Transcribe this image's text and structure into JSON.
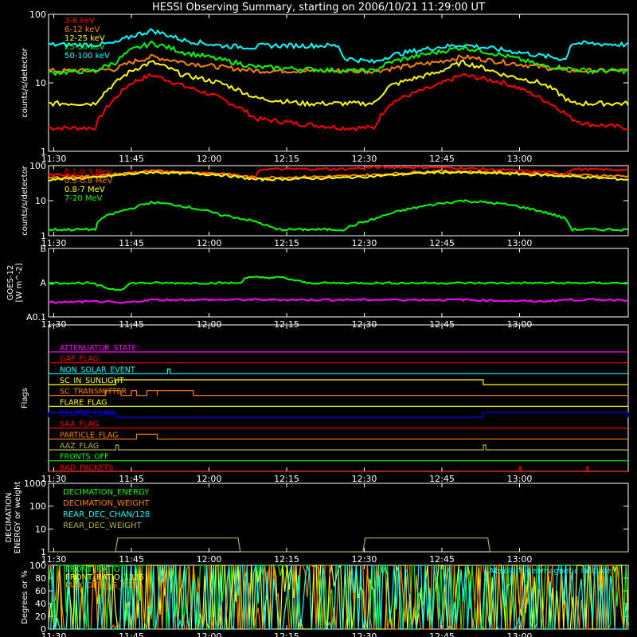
{
  "title": "HESSI Observing Summary, starting on 2006/10/21 11:29:00 UT",
  "time_ticks": [
    "11:30",
    "11:45",
    "12:00",
    "12:15",
    "12:30",
    "12:45",
    "13:00"
  ],
  "colors": {
    "red": "#ff0000",
    "orange": "#ff8000",
    "yellow": "#ffff00",
    "green": "#00ff00",
    "cyan": "#00ffff",
    "magenta": "#ff00ff",
    "blue": "#0000ff",
    "olive": "#b0b040"
  },
  "chart_data": [
    {
      "type": "line",
      "ylabel": "counts/s/detector",
      "yscale": "log",
      "ylim": [
        1,
        100
      ],
      "yticks": [
        "1",
        "10",
        "100"
      ],
      "series": [
        {
          "name": "3-6 keV",
          "color": "#ff0000",
          "x": [
            0,
            9,
            13,
            16,
            20,
            26,
            33,
            40,
            49,
            57,
            63,
            66,
            75,
            80,
            88,
            95,
            101,
            104,
            112
          ],
          "y": [
            2.2,
            2.2,
            6,
            10,
            13,
            9,
            6,
            3,
            2.5,
            2.2,
            2.2,
            5,
            9,
            13,
            10,
            6,
            3,
            2.5,
            2.2
          ]
        },
        {
          "name": "6-12 keV",
          "color": "#ff8000",
          "x": [
            0,
            9,
            13,
            16,
            20,
            26,
            33,
            40,
            49,
            57,
            63,
            66,
            75,
            80,
            88,
            95,
            101,
            104,
            112
          ],
          "y": [
            15,
            15,
            16,
            20,
            24,
            20,
            17,
            15,
            15,
            15,
            15,
            16,
            20,
            24,
            20,
            17,
            15,
            15,
            15
          ]
        },
        {
          "name": "12-25 keV",
          "color": "#ffff00",
          "x": [
            0,
            9,
            13,
            16,
            20,
            26,
            33,
            40,
            49,
            57,
            63,
            66,
            75,
            80,
            88,
            95,
            101,
            104,
            112
          ],
          "y": [
            5,
            5,
            10,
            15,
            20,
            13,
            10,
            6,
            5,
            5,
            5,
            9,
            14,
            20,
            13,
            10,
            5,
            5,
            5
          ]
        },
        {
          "name": "25-50 keV",
          "color": "#00ff00",
          "x": [
            0,
            9,
            13,
            16,
            20,
            26,
            33,
            40,
            49,
            57,
            63,
            66,
            75,
            80,
            88,
            95,
            101,
            104,
            112
          ],
          "y": [
            14,
            15,
            20,
            30,
            38,
            28,
            22,
            17,
            16,
            15,
            15,
            20,
            28,
            33,
            25,
            18,
            16,
            15,
            15
          ]
        },
        {
          "name": "50-100 keV",
          "color": "#00ffff",
          "x": [
            0,
            9,
            13,
            16,
            20,
            26,
            33,
            40,
            41,
            56,
            57,
            63,
            66,
            75,
            80,
            88,
            95,
            100,
            101,
            112
          ],
          "y": [
            36,
            36,
            38,
            48,
            58,
            42,
            35,
            33,
            35,
            35,
            23,
            20,
            25,
            33,
            36,
            30,
            25,
            22,
            38,
            36
          ]
        }
      ]
    },
    {
      "type": "line",
      "ylabel": "counts/s/detector",
      "yscale": "log",
      "ylim": [
        1,
        100
      ],
      "yticks": [
        "1",
        "10",
        "100"
      ],
      "series": [
        {
          "name": "0.1-0.3 MeV",
          "color": "#ff0000",
          "x": [
            0,
            9,
            20,
            33,
            40,
            41,
            57,
            63,
            75,
            88,
            100,
            101,
            112
          ],
          "y": [
            55,
            50,
            70,
            60,
            45,
            80,
            80,
            90,
            90,
            75,
            60,
            80,
            75
          ]
        },
        {
          "name": "0.3-0.8 MeV",
          "color": "#ff8000",
          "x": [
            0,
            9,
            20,
            33,
            40,
            57,
            63,
            75,
            88,
            100,
            112
          ],
          "y": [
            45,
            50,
            70,
            60,
            45,
            50,
            55,
            70,
            65,
            55,
            50
          ]
        },
        {
          "name": "0.8-7 MeV",
          "color": "#ffff00",
          "x": [
            0,
            9,
            20,
            33,
            40,
            57,
            63,
            75,
            88,
            100,
            112
          ],
          "y": [
            40,
            45,
            65,
            55,
            40,
            45,
            50,
            65,
            60,
            50,
            40
          ]
        },
        {
          "name": "7-20 MeV",
          "color": "#00ff00",
          "x": [
            0,
            9,
            10,
            16,
            20,
            26,
            33,
            40,
            44,
            57,
            63,
            75,
            80,
            88,
            95,
            100,
            101,
            112
          ],
          "y": [
            1.5,
            1.5,
            3,
            6,
            9,
            7,
            4,
            2.5,
            1.5,
            1.5,
            3,
            8,
            10,
            8,
            5,
            3,
            1.5,
            1.5
          ]
        }
      ]
    },
    {
      "type": "line",
      "ylabel": "GOES-12 [W m^-2]",
      "ylim": [
        0,
        2
      ],
      "yticks": [
        "A0.1",
        "A",
        "B"
      ],
      "series": [
        {
          "name": "",
          "color": "#00ff00",
          "x": [
            0,
            8,
            10,
            12,
            13,
            14,
            16,
            20,
            37,
            38,
            45,
            50,
            60,
            80,
            112
          ],
          "y": [
            0.99,
            0.99,
            0.9,
            0.82,
            0.8,
            0.8,
            0.99,
            0.99,
            0.99,
            1.15,
            1.15,
            0.99,
            0.99,
            0.99,
            0.99
          ]
        },
        {
          "name": "",
          "color": "#ff00ff",
          "x": [
            0,
            10,
            14,
            20,
            30,
            40,
            50,
            60,
            80,
            95,
            100,
            112
          ],
          "y": [
            0.42,
            0.45,
            0.4,
            0.5,
            0.5,
            0.5,
            0.5,
            0.5,
            0.5,
            0.45,
            0.5,
            0.5
          ]
        }
      ]
    },
    {
      "type": "table",
      "ylabel": "Flags",
      "flags": [
        {
          "name": "ATTENUATOR_STATE",
          "color": "#ff00ff",
          "segments": []
        },
        {
          "name": "GAP_FLAG",
          "color": "#ff0000",
          "segments": []
        },
        {
          "name": "NON_SOLAR_EVENT",
          "color": "#00ffff",
          "segments": [
            [
              23,
              23.5
            ]
          ]
        },
        {
          "name": "SC_IN_SUNLIGHT",
          "color": "#ffff00",
          "segments": [
            [
              13,
              84
            ]
          ]
        },
        {
          "name": "SC_TRANSMITTER",
          "color": "#ff8000",
          "segments": [
            [
              11,
              14
            ],
            [
              16,
              17
            ],
            [
              19,
              21
            ],
            [
              21,
              28
            ]
          ]
        },
        {
          "name": "FLARE_FLAG",
          "color": "#ffff00",
          "segments": []
        },
        {
          "name": "ECLIPSE_FLAG",
          "color": "#0000ff",
          "segments": [
            [
              0,
              13
            ],
            [
              84,
              112
            ]
          ]
        },
        {
          "name": "SAA_FLAG",
          "color": "#ff0000",
          "segments": []
        },
        {
          "name": "PARTICLE_FLAG",
          "color": "#ff8000",
          "segments": [
            [
              17,
              21
            ]
          ]
        },
        {
          "name": "AAZ_FLAG",
          "color": "#b0b040",
          "segments": [
            [
              13,
              13.5
            ],
            [
              84,
              84.5
            ]
          ]
        },
        {
          "name": "FRONTS_OFF",
          "color": "#00ff00",
          "segments": []
        },
        {
          "name": "BAD_PACKETS",
          "color": "#ff0000",
          "segments": [
            [
              91,
              91.3
            ],
            [
              104,
              104.3
            ]
          ]
        }
      ]
    },
    {
      "type": "line",
      "ylabel": "DECIMATION ENERGY or weight",
      "yscale": "log",
      "ylim": [
        1,
        1000
      ],
      "yticks": [
        "1",
        "10",
        "100",
        "1000"
      ],
      "series": [
        {
          "name": "DECIMATION_ENERGY",
          "color": "#00ff00",
          "x": [],
          "y": []
        },
        {
          "name": "DECIMATION_WEIGHT",
          "color": "#ff8000",
          "x": [],
          "y": []
        },
        {
          "name": "REAR_DEC_CHAN/128",
          "color": "#00ffff",
          "x": [],
          "y": []
        },
        {
          "name": "REAR_DEC_WEIGHT",
          "color": "#b0b040",
          "x": [
            0,
            13,
            13,
            37,
            37,
            61,
            61,
            85,
            85,
            112
          ],
          "y": [
            1,
            1,
            4,
            4,
            1,
            1,
            4,
            4,
            1,
            1
          ]
        }
      ]
    },
    {
      "type": "line",
      "ylabel": "Degrees or %",
      "ylim": [
        0,
        100
      ],
      "yticks": [
        "0",
        "20",
        "40",
        "60",
        "80",
        "100"
      ],
      "annotation": "Absolute geomagnetic latitude",
      "series": [
        {
          "name": "FRONT_RATIO",
          "color": "#00ff00",
          "x": [
            0,
            9,
            30,
            36,
            37,
            38,
            85,
            86,
            87,
            112
          ],
          "y": [
            95,
            94,
            96,
            96,
            0,
            88,
            90,
            0,
            88,
            90
          ]
        },
        {
          "name": "FRONT_RATIO_1225",
          "color": "#ffff00",
          "x": [
            0,
            13,
            37,
            38,
            61,
            85,
            87,
            112
          ],
          "y": [
            35,
            50,
            50,
            35,
            35,
            50,
            35,
            30
          ]
        },
        {
          "name": "MAX_DET_VS_TOT",
          "color": "#ff8000",
          "x": [
            0,
            112
          ],
          "y": [
            35,
            35
          ]
        },
        {
          "name": "",
          "color": "#00ffff",
          "x": [
            0,
            14,
            28,
            46,
            60,
            74,
            88,
            104,
            112
          ],
          "y": [
            2,
            50,
            40,
            0,
            50,
            40,
            0,
            45,
            20
          ]
        }
      ]
    }
  ]
}
